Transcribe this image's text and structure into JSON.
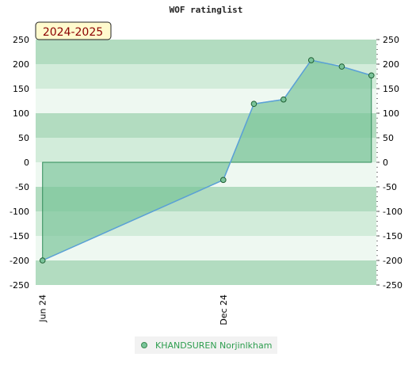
{
  "chart_data": {
    "type": "area",
    "title": "WOF ratinglist",
    "season": "2024-2025",
    "ylim": [
      -250,
      250
    ],
    "yticks": [
      250,
      200,
      150,
      100,
      50,
      0,
      -50,
      -100,
      -150,
      -200,
      -250
    ],
    "xlim": [
      "2024-05-25",
      "2025-05-05"
    ],
    "xticks": [
      {
        "label": "Jun 24",
        "date": "2024-06-01"
      },
      {
        "label": "Dec 24",
        "date": "2024-12-01"
      }
    ],
    "series": [
      {
        "name": "KHANDSUREN Norjinlkham",
        "color": "#7ac49a",
        "points": [
          {
            "x": "2024-06-01",
            "y": -200
          },
          {
            "x": "2024-12-01",
            "y": -36
          },
          {
            "x": "2025-01-01",
            "y": 119
          },
          {
            "x": "2025-01-31",
            "y": 128
          },
          {
            "x": "2025-02-28",
            "y": 208
          },
          {
            "x": "2025-03-31",
            "y": 195
          },
          {
            "x": "2025-04-30",
            "y": 177
          }
        ]
      }
    ],
    "grid": true,
    "legend": "bottom",
    "colors": {
      "band_dark": "#b2dcc0",
      "band_mid": "#d2ecda",
      "band_light": "#eef8f1",
      "area_fill": "#7ac49a",
      "line": "#5aa0d8",
      "point": "#3a8a50"
    }
  }
}
